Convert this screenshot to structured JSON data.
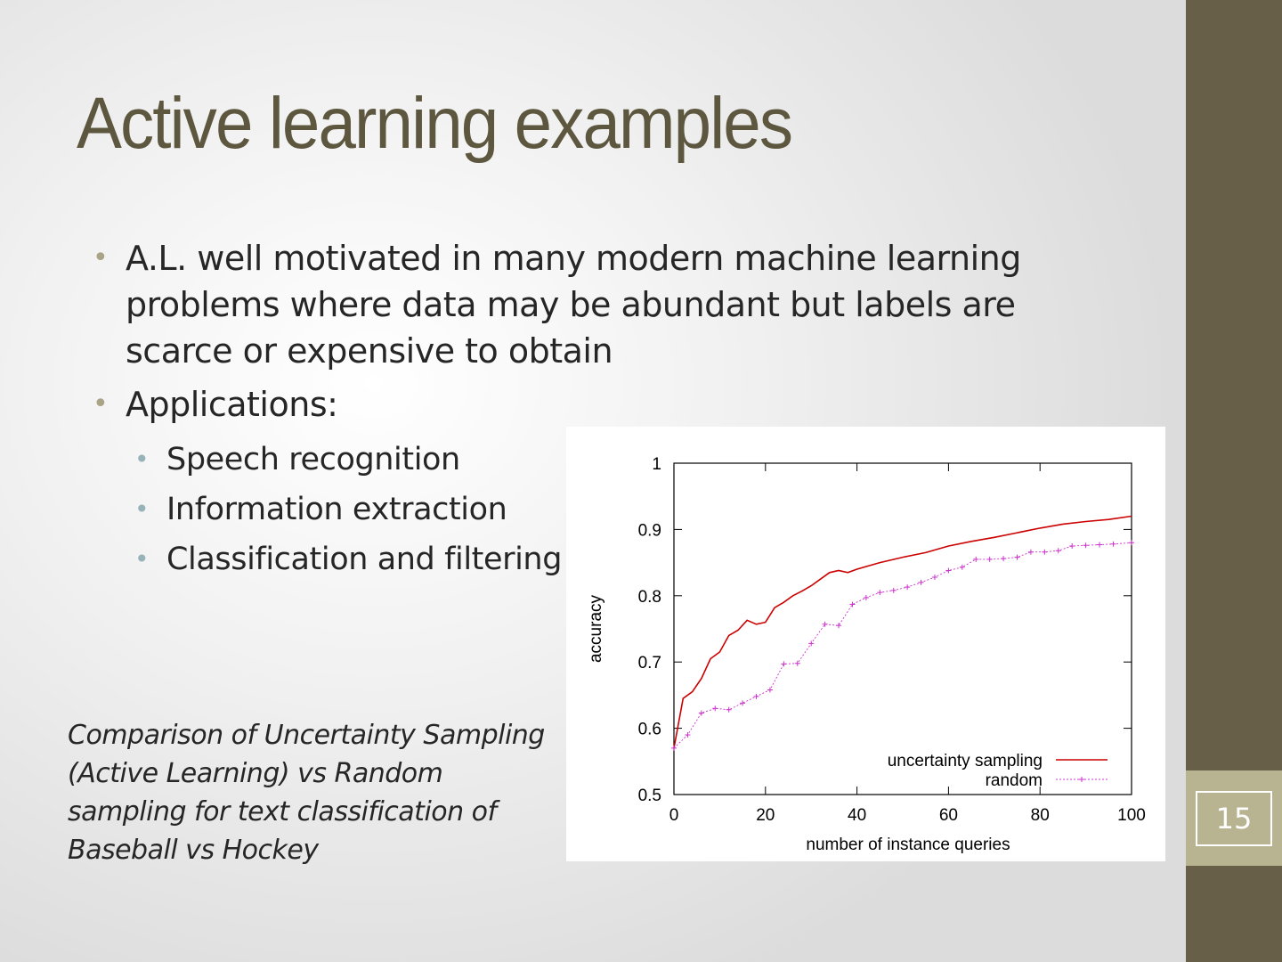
{
  "slide": {
    "title": "Active learning examples",
    "bullets": [
      {
        "text": "A.L. well motivated in many modern machine learning problems where data may be abundant but labels are scarce or expensive to obtain"
      },
      {
        "text": "Applications:"
      }
    ],
    "sub_bullets": [
      "Speech recognition",
      "Information extraction",
      "Classification and filtering"
    ],
    "caption_lines": [
      "Comparison of Uncertainty Sampling",
      "(Active Learning) vs Random",
      "sampling for text classification of",
      "Baseball vs Hockey"
    ],
    "page_number": "15",
    "bullet_glyph": "•"
  },
  "colors": {
    "title": "#5e573f",
    "sidebar": "#675f47",
    "page_band": "#b8b391",
    "series_uncertainty": "#cc0000",
    "series_random": "#cc33cc"
  },
  "chart_data": {
    "type": "line",
    "xlabel": "number of instance queries",
    "ylabel": "accuracy",
    "xlim": [
      0,
      100
    ],
    "ylim": [
      0.5,
      1
    ],
    "xticks": [
      0,
      20,
      40,
      60,
      80,
      100
    ],
    "yticks": [
      0.5,
      0.6,
      0.7,
      0.8,
      0.9,
      1
    ],
    "ytick_labels": [
      "0.5",
      "0.6",
      "0.7",
      "0.8",
      "0.9",
      "1"
    ],
    "xtick_labels": [
      "0",
      "20",
      "40",
      "60",
      "80",
      "100"
    ],
    "grid": false,
    "legend_position": "bottom-right",
    "series": [
      {
        "name": "uncertainty sampling",
        "color": "#cc0000",
        "x": [
          0,
          2,
          4,
          6,
          8,
          10,
          12,
          14,
          16,
          18,
          20,
          22,
          24,
          26,
          28,
          30,
          32,
          34,
          36,
          38,
          40,
          45,
          50,
          55,
          60,
          65,
          70,
          75,
          80,
          85,
          90,
          95,
          100
        ],
        "y": [
          0.57,
          0.645,
          0.655,
          0.675,
          0.705,
          0.715,
          0.74,
          0.748,
          0.763,
          0.757,
          0.76,
          0.782,
          0.79,
          0.8,
          0.807,
          0.815,
          0.825,
          0.835,
          0.838,
          0.835,
          0.84,
          0.85,
          0.858,
          0.865,
          0.875,
          0.882,
          0.888,
          0.895,
          0.902,
          0.908,
          0.912,
          0.915,
          0.92
        ]
      },
      {
        "name": "random",
        "color": "#cc33cc",
        "x": [
          0,
          3,
          6,
          9,
          12,
          15,
          18,
          21,
          24,
          27,
          30,
          33,
          36,
          39,
          42,
          45,
          48,
          51,
          54,
          57,
          60,
          63,
          66,
          69,
          72,
          75,
          78,
          81,
          84,
          87,
          90,
          93,
          96,
          100
        ],
        "y": [
          0.57,
          0.59,
          0.623,
          0.63,
          0.628,
          0.638,
          0.648,
          0.658,
          0.697,
          0.698,
          0.728,
          0.757,
          0.755,
          0.787,
          0.797,
          0.805,
          0.808,
          0.813,
          0.82,
          0.828,
          0.838,
          0.843,
          0.855,
          0.855,
          0.856,
          0.858,
          0.866,
          0.866,
          0.868,
          0.875,
          0.876,
          0.877,
          0.878,
          0.88
        ]
      }
    ]
  }
}
